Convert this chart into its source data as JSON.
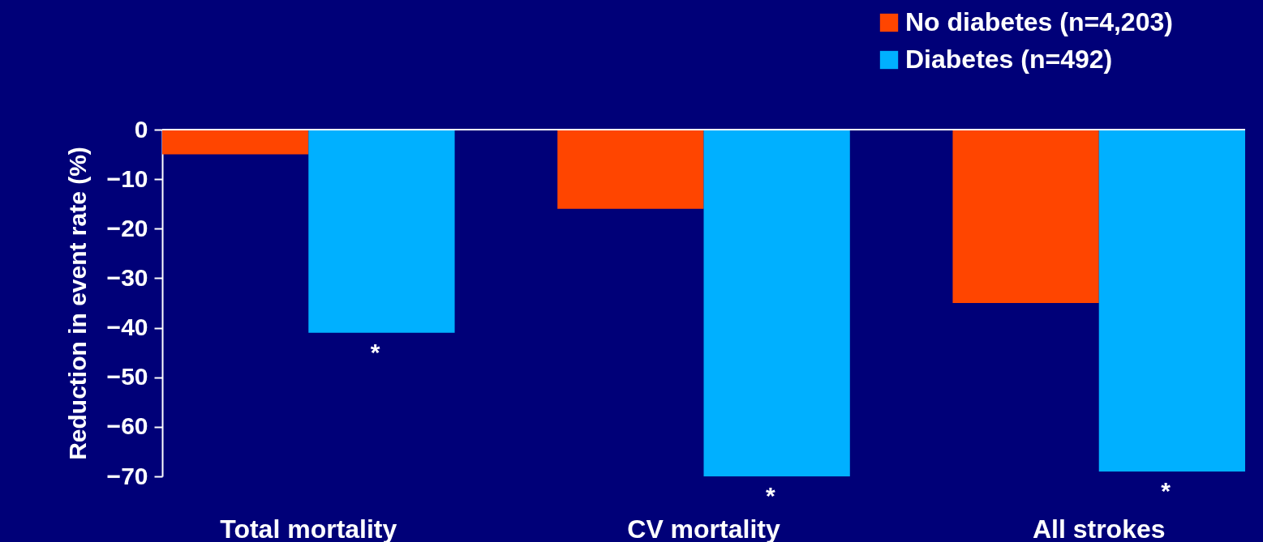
{
  "chart_data": {
    "type": "bar",
    "ylabel": "Reduction in event rate (%)",
    "categories": [
      "Total mortality",
      "CV mortality",
      "All strokes"
    ],
    "series": [
      {
        "name": "No diabetes (n=4,203)",
        "color": "#ff4500",
        "values": [
          -5,
          -16,
          -35
        ]
      },
      {
        "name": "Diabetes (n=492)",
        "color": "#00b0ff",
        "values": [
          -41,
          -70,
          -69
        ]
      }
    ],
    "ylim": [
      -70,
      0
    ],
    "yticks": [
      0,
      -10,
      -20,
      -30,
      -40,
      -50,
      -60,
      -70
    ],
    "ref_lines": [
      {
        "axis": "y",
        "value": 0,
        "color": "#ffffff"
      }
    ],
    "annotations": [
      {
        "text": "*",
        "x": "Total mortality",
        "y": -41
      },
      {
        "text": "*",
        "x": "CV mortality",
        "y": -70
      },
      {
        "text": "*",
        "x": "All strokes",
        "y": -69
      }
    ],
    "legend": "top right",
    "grid": false
  }
}
